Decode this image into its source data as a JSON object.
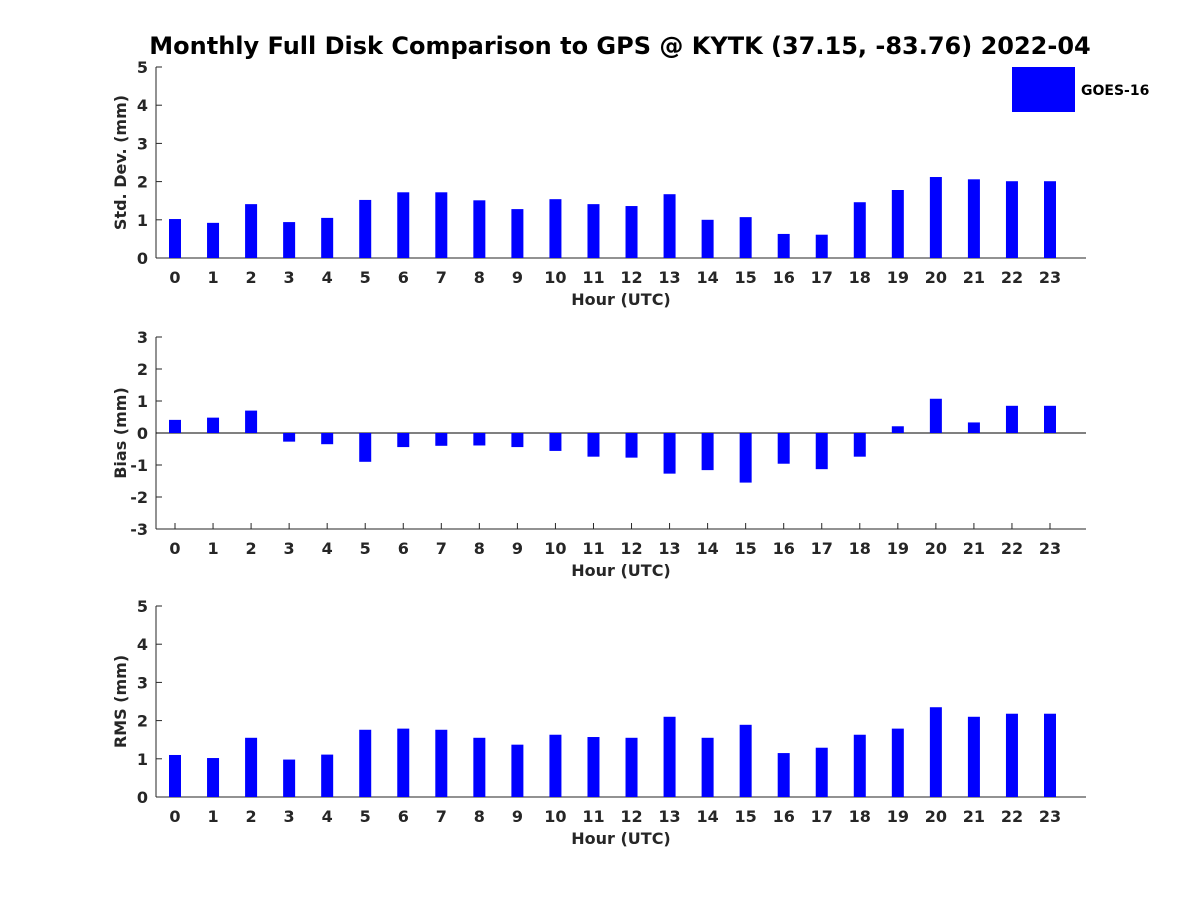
{
  "title": "Monthly Full Disk Comparison to GPS @ KYTK (37.15, -83.76) 2022-04",
  "legend": {
    "label": "GOES-16",
    "color": "#0000ff",
    "placement": "top-right"
  },
  "chart_data": [
    {
      "type": "bar",
      "name": "std-dev",
      "xlabel": "Hour (UTC)",
      "ylabel": "Std. Dev. (mm)",
      "ylim": [
        0,
        5
      ],
      "yticks": [
        "0",
        "1",
        "2",
        "3",
        "4",
        "5"
      ],
      "categories": [
        "0",
        "1",
        "2",
        "3",
        "4",
        "5",
        "6",
        "7",
        "8",
        "9",
        "10",
        "11",
        "12",
        "13",
        "14",
        "15",
        "16",
        "17",
        "18",
        "19",
        "20",
        "21",
        "22",
        "23"
      ],
      "series": [
        {
          "name": "GOES-16",
          "color": "#0000ff",
          "values": [
            1.02,
            0.92,
            1.41,
            0.94,
            1.05,
            1.52,
            1.72,
            1.72,
            1.51,
            1.28,
            1.54,
            1.41,
            1.36,
            1.67,
            1.0,
            1.07,
            0.63,
            0.61,
            1.46,
            1.78,
            2.12,
            2.06,
            2.01,
            2.01
          ]
        }
      ]
    },
    {
      "type": "bar",
      "name": "bias",
      "xlabel": "Hour (UTC)",
      "ylabel": "Bias (mm)",
      "ylim": [
        -3,
        3
      ],
      "yticks": [
        "-3",
        "-2",
        "-1",
        "0",
        "1",
        "2",
        "3"
      ],
      "zero_line": true,
      "categories": [
        "0",
        "1",
        "2",
        "3",
        "4",
        "5",
        "6",
        "7",
        "8",
        "9",
        "10",
        "11",
        "12",
        "13",
        "14",
        "15",
        "16",
        "17",
        "18",
        "19",
        "20",
        "21",
        "22",
        "23"
      ],
      "series": [
        {
          "name": "GOES-16",
          "color": "#0000ff",
          "values": [
            0.41,
            0.48,
            0.7,
            -0.27,
            -0.35,
            -0.9,
            -0.44,
            -0.4,
            -0.39,
            -0.44,
            -0.56,
            -0.74,
            -0.77,
            -1.27,
            -1.16,
            -1.55,
            -0.96,
            -1.13,
            -0.74,
            0.21,
            1.07,
            0.33,
            0.85,
            0.85
          ]
        }
      ]
    },
    {
      "type": "bar",
      "name": "rms",
      "xlabel": "Hour (UTC)",
      "ylabel": "RMS (mm)",
      "ylim": [
        0,
        5
      ],
      "yticks": [
        "0",
        "1",
        "2",
        "3",
        "4",
        "5"
      ],
      "categories": [
        "0",
        "1",
        "2",
        "3",
        "4",
        "5",
        "6",
        "7",
        "8",
        "9",
        "10",
        "11",
        "12",
        "13",
        "14",
        "15",
        "16",
        "17",
        "18",
        "19",
        "20",
        "21",
        "22",
        "23"
      ],
      "series": [
        {
          "name": "GOES-16",
          "color": "#0000ff",
          "values": [
            1.1,
            1.02,
            1.55,
            0.98,
            1.11,
            1.76,
            1.79,
            1.76,
            1.55,
            1.37,
            1.63,
            1.57,
            1.55,
            2.1,
            1.55,
            1.89,
            1.15,
            1.29,
            1.63,
            1.79,
            2.35,
            2.1,
            2.18,
            2.18
          ]
        }
      ]
    }
  ]
}
